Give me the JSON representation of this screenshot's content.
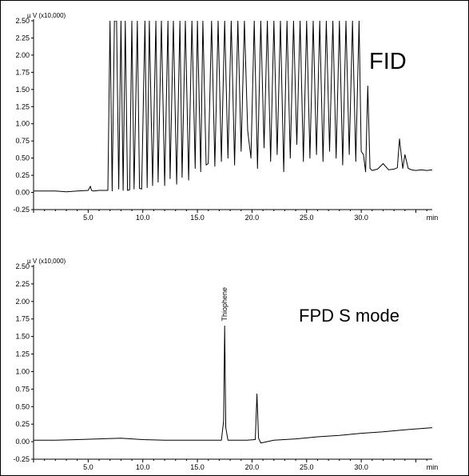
{
  "chart_data": [
    {
      "type": "line",
      "title": "",
      "label": "FID",
      "ylabel": "µ V (x10,000)",
      "xlabel": "min",
      "xlim": [
        0,
        36.5
      ],
      "ylim": [
        -0.25,
        2.5
      ],
      "x_ticks": [
        "5.0",
        "10.0",
        "15.0",
        "20.0",
        "25.0",
        "30.0"
      ],
      "x_tick_values": [
        5,
        10,
        15,
        20,
        25,
        30
      ],
      "y_ticks": [
        "2.50",
        "2.25",
        "2.00",
        "1.75",
        "1.50",
        "1.25",
        "1.00",
        "0.75",
        "0.50",
        "0.25",
        "0.00",
        "-0.25"
      ],
      "y_tick_values": [
        2.5,
        2.25,
        2.0,
        1.75,
        1.5,
        1.25,
        1.0,
        0.75,
        0.5,
        0.25,
        0.0,
        -0.25
      ],
      "series": [
        {
          "color": "#000000",
          "x": [
            0,
            1,
            2,
            3,
            4,
            5,
            5.2,
            5.3,
            5.5,
            6,
            6.8,
            7.0,
            7.2,
            7.4,
            7.6,
            7.8,
            8.0,
            8.2,
            8.4,
            8.6,
            8.8,
            9.0,
            9.2,
            9.5,
            9.7,
            9.9,
            10.2,
            10.4,
            10.6,
            10.9,
            11.2,
            11.4,
            11.7,
            12.0,
            12.3,
            12.5,
            12.8,
            13.1,
            13.4,
            13.6,
            13.9,
            14.2,
            14.5,
            14.8,
            15.0,
            15.3,
            15.5,
            15.8,
            16.0,
            16.3,
            16.6,
            16.9,
            17.2,
            17.5,
            17.8,
            18.1,
            18.4,
            18.7,
            19.0,
            19.3,
            19.6,
            19.9,
            20.2,
            20.5,
            20.8,
            21.1,
            21.4,
            21.7,
            22.0,
            22.3,
            22.6,
            22.9,
            23.2,
            23.5,
            23.8,
            24.1,
            24.4,
            24.7,
            25.0,
            25.3,
            25.6,
            25.9,
            26.2,
            26.5,
            26.8,
            27.1,
            27.4,
            27.7,
            28.0,
            28.3,
            28.6,
            28.9,
            29.2,
            29.5,
            29.8,
            30.0,
            30.2,
            30.4,
            30.6,
            30.8,
            31.0,
            31.5,
            32.0,
            32.5,
            33.0,
            33.3,
            33.5,
            33.8,
            34.0,
            34.3,
            34.6,
            35.0,
            35.5,
            36.0,
            36.5
          ],
          "y": [
            0.02,
            0.02,
            0.02,
            0.01,
            0.02,
            0.03,
            0.09,
            0.03,
            0.02,
            0.03,
            0.03,
            2.5,
            0.02,
            2.5,
            2.5,
            0.05,
            2.5,
            0.03,
            2.5,
            0.03,
            0.04,
            2.5,
            0.05,
            2.5,
            0.06,
            0.05,
            2.5,
            0.07,
            2.5,
            0.1,
            2.5,
            0.15,
            2.5,
            0.1,
            2.5,
            0.2,
            2.5,
            0.12,
            2.5,
            0.22,
            2.5,
            0.18,
            2.5,
            0.35,
            2.5,
            0.3,
            2.5,
            0.4,
            0.42,
            2.5,
            0.38,
            2.5,
            0.45,
            2.5,
            0.5,
            2.5,
            0.4,
            2.5,
            0.6,
            2.5,
            0.9,
            0.5,
            2.5,
            0.35,
            2.5,
            0.65,
            2.5,
            0.45,
            2.5,
            0.55,
            2.5,
            0.3,
            2.5,
            0.5,
            2.5,
            0.7,
            2.5,
            0.45,
            2.5,
            0.5,
            2.5,
            0.55,
            2.5,
            0.45,
            2.5,
            0.6,
            2.5,
            0.5,
            2.5,
            0.4,
            2.5,
            0.55,
            2.5,
            0.45,
            2.5,
            0.6,
            0.55,
            0.3,
            1.55,
            0.35,
            0.32,
            0.34,
            0.42,
            0.33,
            0.34,
            0.36,
            0.78,
            0.35,
            0.55,
            0.35,
            0.33,
            0.32,
            0.33,
            0.32,
            0.33
          ]
        }
      ]
    },
    {
      "type": "line",
      "title": "",
      "label": "FPD S mode",
      "ylabel": "µ V (x10,000)",
      "xlabel": "min",
      "xlim": [
        0,
        36.5
      ],
      "ylim": [
        -0.25,
        2.5
      ],
      "x_ticks": [
        "5.0",
        "10.0",
        "15.0",
        "20.0",
        "25.0",
        "30.0"
      ],
      "x_tick_values": [
        5,
        10,
        15,
        20,
        25,
        30
      ],
      "y_ticks": [
        "2.50",
        "2.25",
        "2.00",
        "1.75",
        "1.50",
        "1.25",
        "1.00",
        "0.75",
        "0.50",
        "0.25",
        "0.00",
        "-0.25"
      ],
      "y_tick_values": [
        2.5,
        2.25,
        2.0,
        1.75,
        1.5,
        1.25,
        1.0,
        0.75,
        0.5,
        0.25,
        0.0,
        -0.25
      ],
      "annotations": [
        {
          "text": "Thiophene",
          "x": 17.5
        }
      ],
      "series": [
        {
          "color": "#000000",
          "x": [
            0,
            2,
            4,
            6,
            8,
            10,
            12,
            14,
            16,
            17.2,
            17.4,
            17.5,
            17.6,
            17.8,
            18.5,
            19.5,
            20.3,
            20.45,
            20.6,
            20.8,
            22,
            24,
            26,
            28,
            30,
            32,
            34,
            36.5
          ],
          "y": [
            0.02,
            0.02,
            0.03,
            0.04,
            0.05,
            0.03,
            0.02,
            0.02,
            0.02,
            0.02,
            0.3,
            1.65,
            0.2,
            0.02,
            0.02,
            0.02,
            0.03,
            0.68,
            0.05,
            -0.02,
            0.02,
            0.04,
            0.07,
            0.09,
            0.12,
            0.14,
            0.17,
            0.2
          ]
        }
      ]
    }
  ]
}
